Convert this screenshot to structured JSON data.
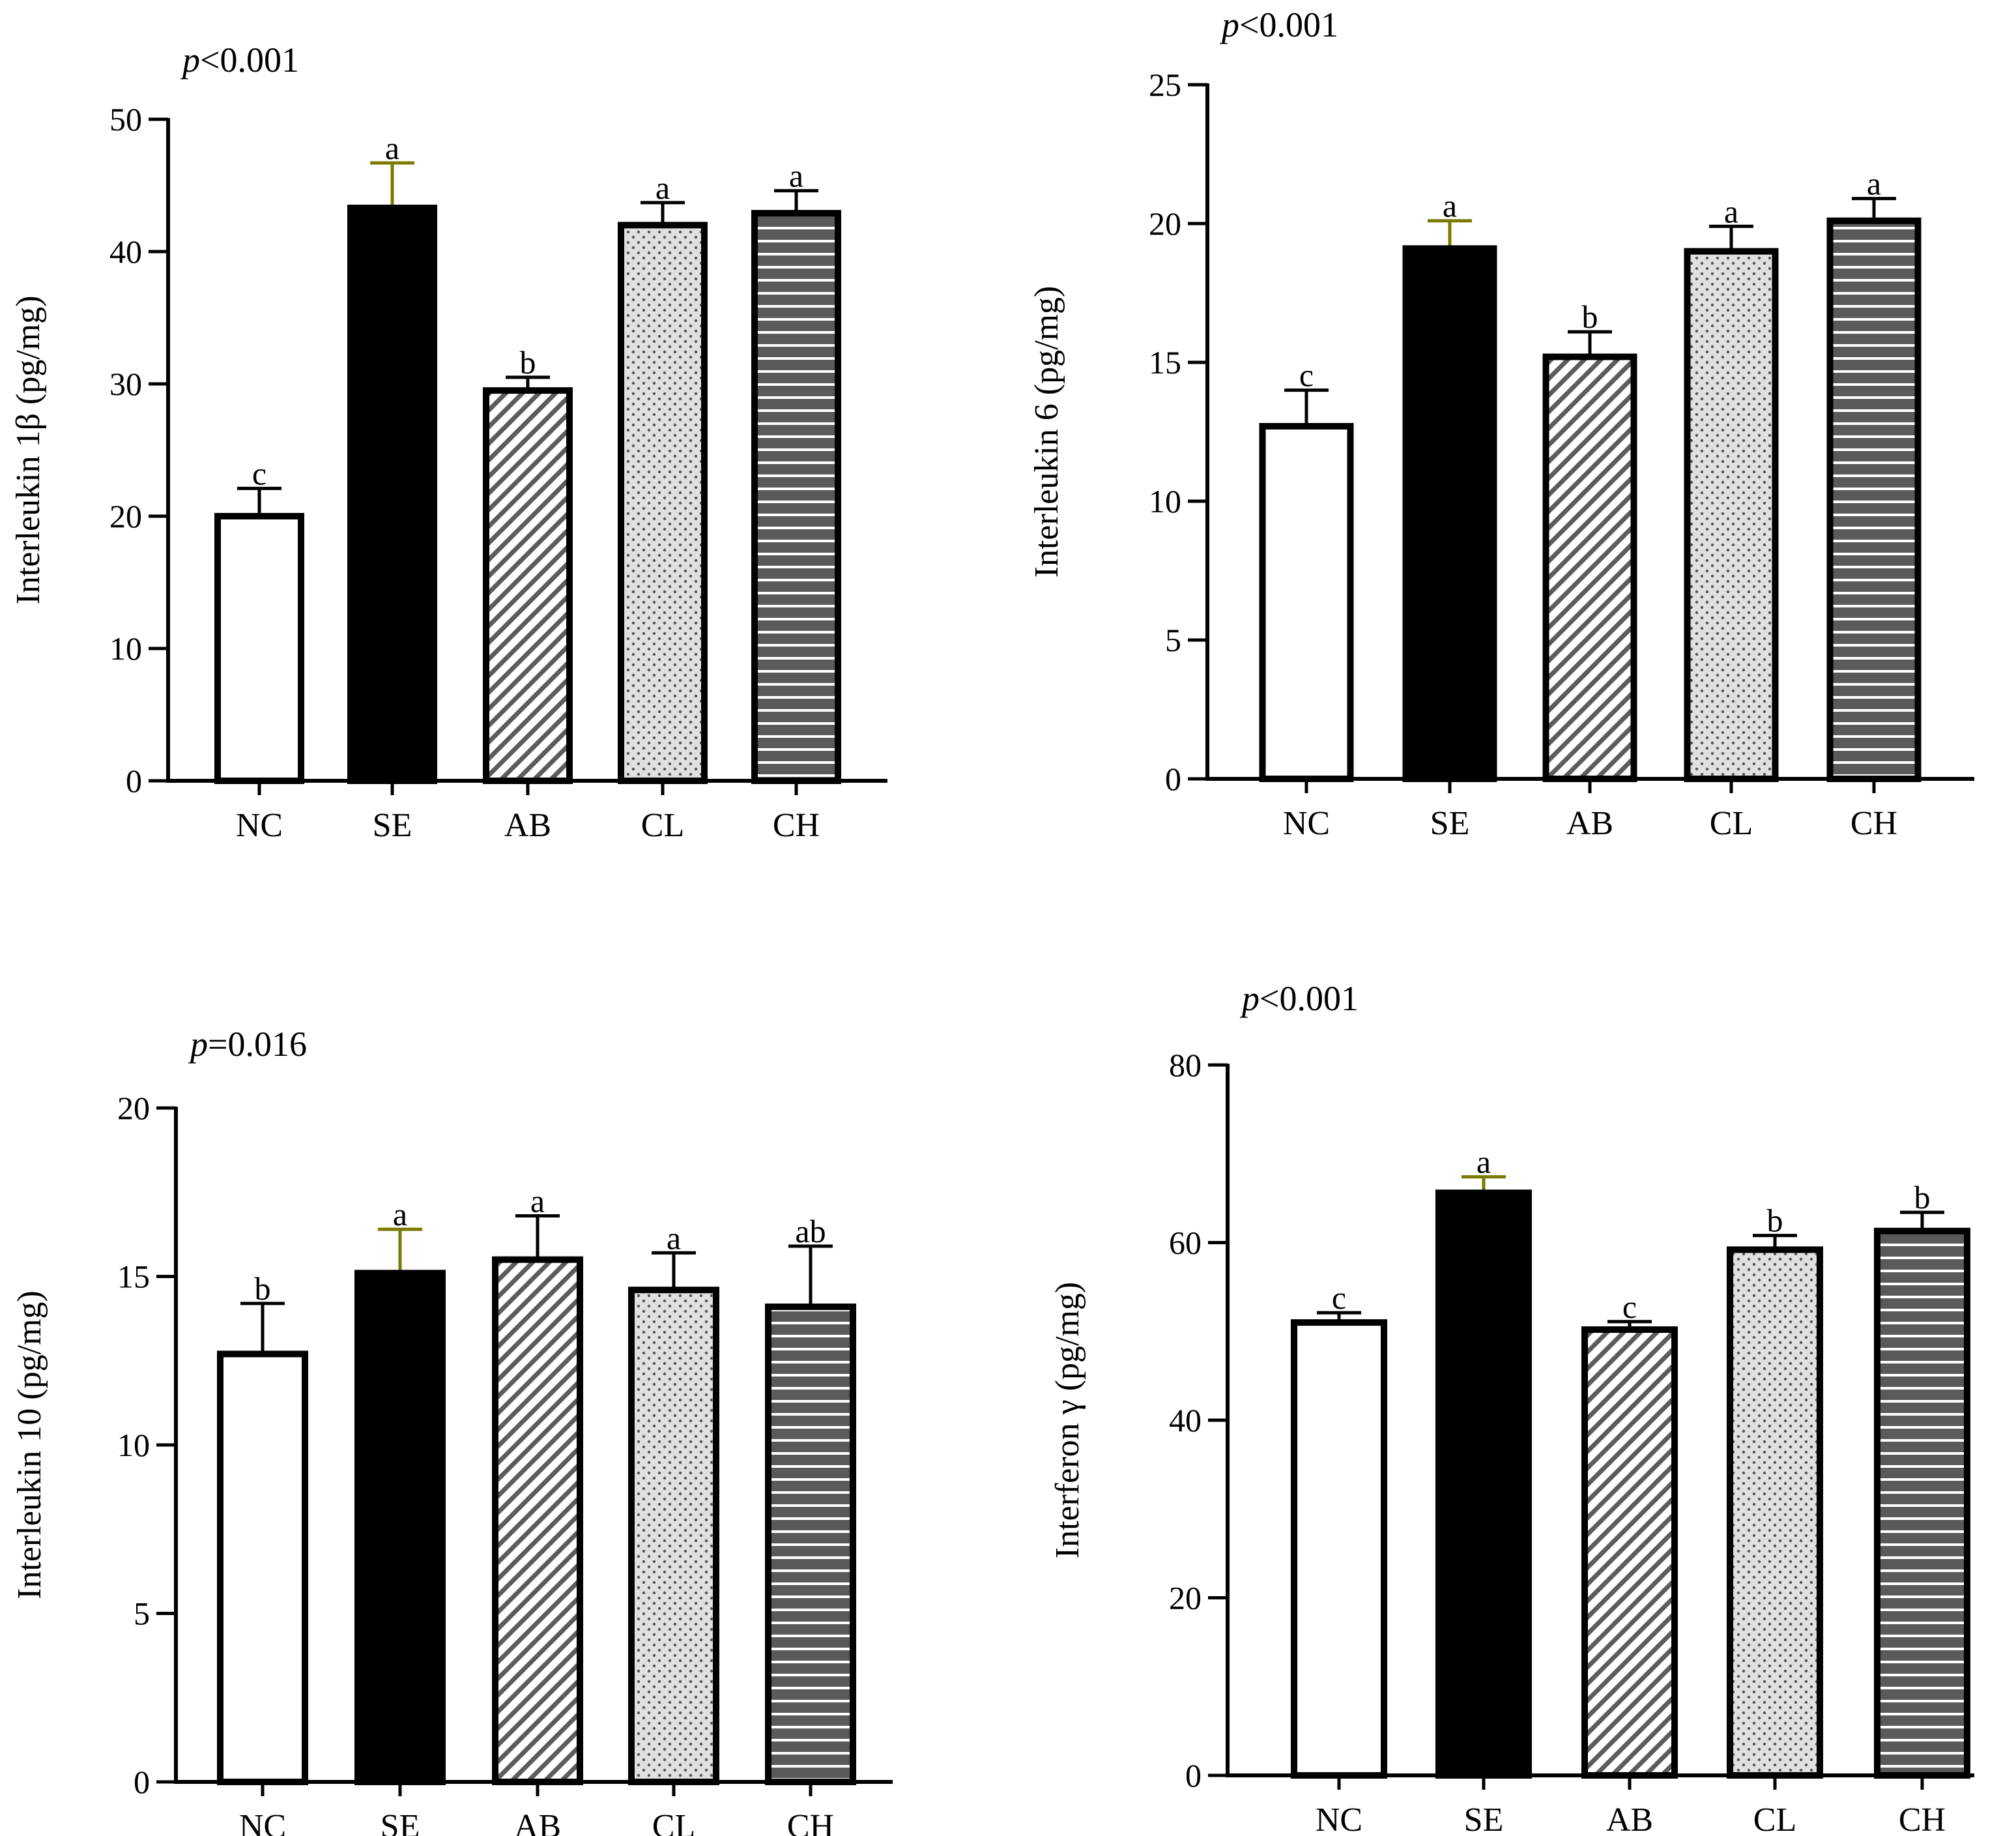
{
  "figure": {
    "background": "#ffffff",
    "ink": "#000000",
    "se_errorbar_color": "#7a7a00",
    "bar_styles": {
      "NC": "open",
      "SE": "solid",
      "AB": "diagonal-hatch",
      "CL": "dotted",
      "CH": "horizontal-stripes"
    }
  },
  "chart_data": [
    {
      "id": "il1b",
      "type": "bar",
      "title": "",
      "p_label": "<0.001",
      "xlabel": "",
      "ylabel": "Interleukin 1β (pg/mg)",
      "ylim": [
        0,
        50
      ],
      "yticks": [
        0,
        10,
        20,
        30,
        40,
        50
      ],
      "categories": [
        "NC",
        "SE",
        "AB",
        "CL",
        "CH"
      ],
      "values": [
        20.0,
        43.3,
        29.5,
        42.0,
        42.9
      ],
      "errors": [
        2.1,
        3.4,
        1.0,
        1.7,
        1.7
      ],
      "letters": [
        "c",
        "a",
        "b",
        "a",
        "a"
      ]
    },
    {
      "id": "il6",
      "type": "bar",
      "title": "",
      "p_label": "<0.001",
      "xlabel": "",
      "ylabel": "Interleukin 6 (pg/mg)",
      "ylim": [
        0,
        25
      ],
      "yticks": [
        0,
        5,
        10,
        15,
        20,
        25
      ],
      "categories": [
        "NC",
        "SE",
        "AB",
        "CL",
        "CH"
      ],
      "values": [
        12.7,
        19.1,
        15.2,
        19.0,
        20.1
      ],
      "errors": [
        1.3,
        1.0,
        0.9,
        0.9,
        0.8
      ],
      "letters": [
        "c",
        "a",
        "b",
        "a",
        "a"
      ]
    },
    {
      "id": "il10",
      "type": "bar",
      "title": "",
      "p_label": "=0.016",
      "xlabel": "",
      "ylabel": "Interleukin 10 (pg/mg)",
      "ylim": [
        0,
        20
      ],
      "yticks": [
        0,
        5,
        10,
        15,
        20
      ],
      "categories": [
        "NC",
        "SE",
        "AB",
        "CL",
        "CH"
      ],
      "values": [
        12.7,
        15.1,
        15.5,
        14.6,
        14.1
      ],
      "errors": [
        1.5,
        1.3,
        1.3,
        1.1,
        1.8
      ],
      "letters": [
        "b",
        "a",
        "a",
        "a",
        "ab"
      ]
    },
    {
      "id": "ifng",
      "type": "bar",
      "title": "",
      "p_label": "<0.001",
      "xlabel": "",
      "ylabel": "Interferon γ (pg/mg)",
      "ylim": [
        0,
        80
      ],
      "yticks": [
        0,
        20,
        40,
        60,
        80
      ],
      "categories": [
        "NC",
        "SE",
        "AB",
        "CL",
        "CH"
      ],
      "values": [
        51.0,
        65.6,
        50.2,
        59.2,
        61.3
      ],
      "errors": [
        1.1,
        1.8,
        0.9,
        1.6,
        2.1
      ],
      "letters": [
        "c",
        "a",
        "c",
        "b",
        "b"
      ]
    }
  ]
}
